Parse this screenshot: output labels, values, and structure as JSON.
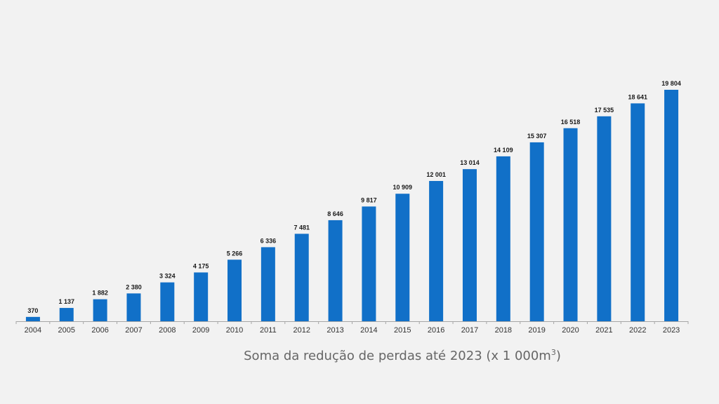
{
  "chart_data": {
    "type": "bar",
    "title": "Soma da redução de perdas até 2023 (x 1 000m",
    "title_superscript": "3",
    "title_suffix": ")",
    "categories": [
      "2004",
      "2005",
      "2006",
      "2007",
      "2008",
      "2009",
      "2010",
      "2011",
      "2012",
      "2013",
      "2014",
      "2015",
      "2016",
      "2017",
      "2018",
      "2019",
      "2020",
      "2021",
      "2022",
      "2023"
    ],
    "values": [
      370,
      1137,
      1882,
      2380,
      3324,
      4175,
      5266,
      6336,
      7481,
      8646,
      9817,
      10909,
      12001,
      13014,
      14109,
      15307,
      16518,
      17535,
      18641,
      19804
    ],
    "data_labels": [
      "370",
      "1 137",
      "1 882",
      "2 380",
      "3 324",
      "4 175",
      "5 266",
      "6 336",
      "7 481",
      "8 646",
      "9 817",
      "10 909",
      "12 001",
      "13 014",
      "14 109",
      "15 307",
      "16 518",
      "17 535",
      "18 641",
      "19 804"
    ],
    "xlabel": "",
    "ylabel": "",
    "ylim": [
      0,
      19804
    ],
    "grid": false,
    "legend": "none",
    "bar_color": "#1170c8",
    "background_color": "#f2f2f2"
  }
}
